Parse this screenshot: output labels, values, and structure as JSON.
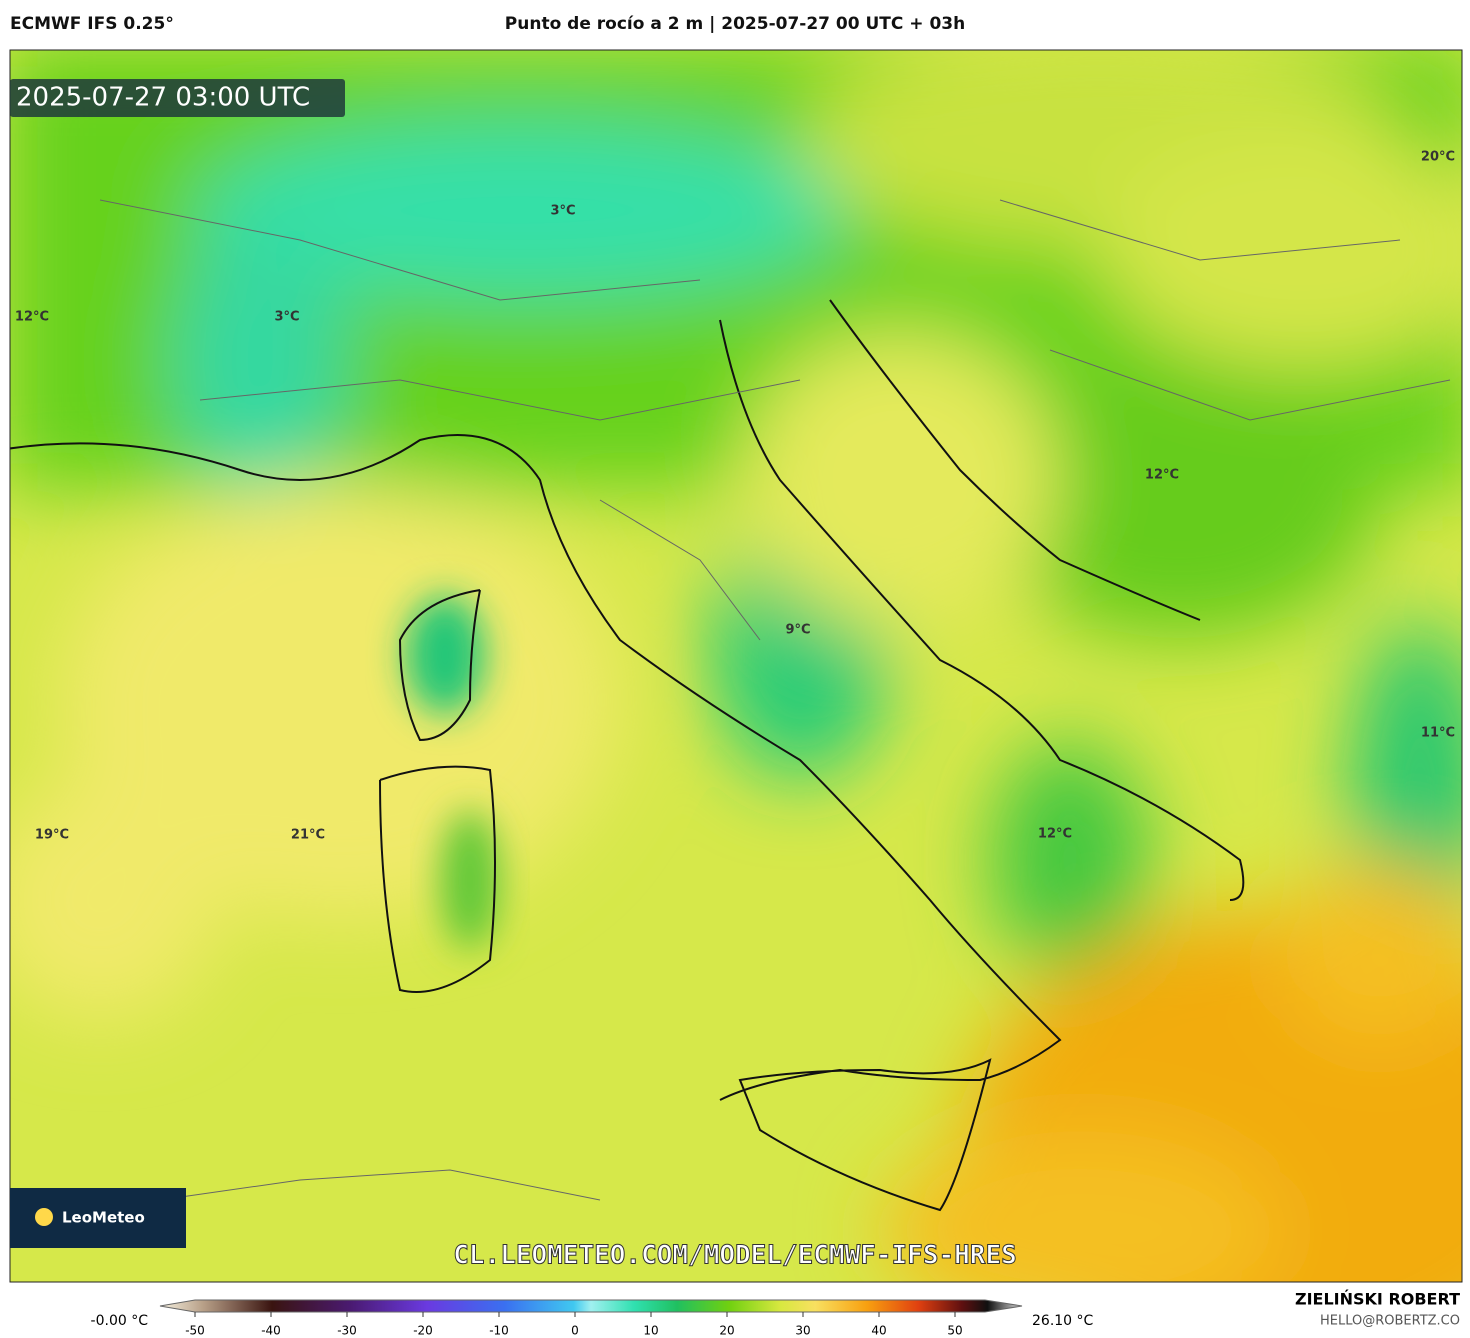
{
  "header": {
    "model": "ECMWF IFS 0.25°",
    "title": "Punto de rocío a 2 m | 2025-07-27 00 UTC + 03h"
  },
  "timestamp": "2025-07-27 03:00 UTC",
  "map_labels": [
    "20°C",
    "3°C",
    "12°C",
    "3°C",
    "12°C",
    "9°C",
    "11°C",
    "19°C",
    "21°C",
    "12°C"
  ],
  "logo": "LeoMeteo",
  "watermark": "CL.LEOMETEO.COM/MODEL/ECMWF-IFS-HRES",
  "colorbar": {
    "min_label": "-0.00 °C",
    "max_label": "26.10 °C",
    "ticks": [
      -50,
      -40,
      -30,
      -20,
      -10,
      0,
      10,
      20,
      30,
      40,
      50
    ]
  },
  "credit": {
    "name": "ZIELIŃSKI ROBERT",
    "email": "HELLO@ROBERTZ.CO"
  }
}
